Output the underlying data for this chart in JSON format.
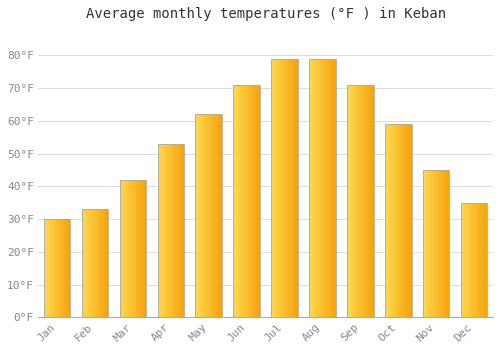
{
  "title": "Average monthly temperatures (°F ) in Keban",
  "months": [
    "Jan",
    "Feb",
    "Mar",
    "Apr",
    "May",
    "Jun",
    "Jul",
    "Aug",
    "Sep",
    "Oct",
    "Nov",
    "Dec"
  ],
  "values": [
    30,
    33,
    42,
    53,
    62,
    71,
    79,
    79,
    71,
    59,
    45,
    35
  ],
  "bar_color_left": "#FFD44A",
  "bar_color_right": "#F5A000",
  "bar_edge_color": "#aaaaaa",
  "yticks": [
    0,
    10,
    20,
    30,
    40,
    50,
    60,
    70,
    80
  ],
  "ytick_labels": [
    "0°F",
    "10°F",
    "20°F",
    "30°F",
    "40°F",
    "50°F",
    "60°F",
    "70°F",
    "80°F"
  ],
  "ylim": [
    0,
    88
  ],
  "background_color": "#ffffff",
  "plot_bg_color": "#ffffff",
  "grid_color": "#dddddd",
  "title_fontsize": 10,
  "tick_fontsize": 8,
  "tick_color": "#888888",
  "bar_width": 0.7
}
